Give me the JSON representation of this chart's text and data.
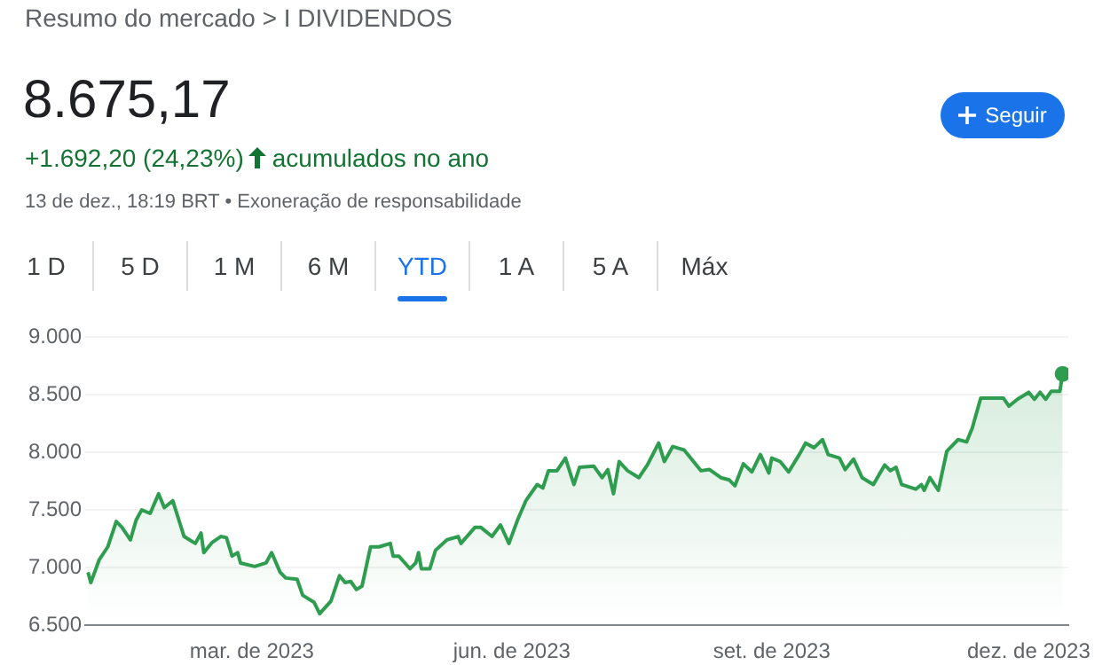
{
  "chart_data": {
    "type": "area",
    "title": "Resumo do mercado > I DIVIDENDOS",
    "subtitle": "8.675,17",
    "annotations": [
      "+1.692,20 (24,23%)",
      "acumulados no ano",
      "13 de dez., 18:19 BRT • Exoneração de responsabilidade",
      "Seguir",
      "1 D",
      "5 D",
      "1 M",
      "6 M",
      "YTD",
      "1 A",
      "5 A",
      "Máx"
    ],
    "xlim": [
      "2023-01-01",
      "2023-12-15"
    ],
    "xticks": [
      {
        "value": "2023-03-01",
        "label": "mar. de 2023"
      },
      {
        "value": "2023-06-01",
        "label": "jun. de 2023"
      },
      {
        "value": "2023-09-01",
        "label": "set. de 2023"
      },
      {
        "value": "2023-12-01",
        "label": "dez. de 2023"
      }
    ],
    "ylim": [
      6500,
      9000
    ],
    "yticks": [
      {
        "value": 6500,
        "label": "6.500"
      },
      {
        "value": 7000,
        "label": "7.000"
      },
      {
        "value": 7500,
        "label": "7.500"
      },
      {
        "value": 8000,
        "label": "8.000"
      },
      {
        "value": 8500,
        "label": "8.500"
      },
      {
        "value": 9000,
        "label": "9.000"
      }
    ],
    "grid": "y",
    "legend": false,
    "marker": "none",
    "line_style": "solid",
    "series": [
      {
        "type": "area",
        "color": "#2e9d4f",
        "x": [
          "2023-01-02",
          "2023-01-03",
          "2023-01-06",
          "2023-01-09",
          "2023-01-12",
          "2023-01-14",
          "2023-01-17",
          "2023-01-19",
          "2023-01-21",
          "2023-01-24",
          "2023-01-27",
          "2023-01-29",
          "2023-02-01",
          "2023-02-05",
          "2023-02-07",
          "2023-02-09",
          "2023-02-11",
          "2023-02-12",
          "2023-02-15",
          "2023-02-18",
          "2023-02-20",
          "2023-02-22",
          "2023-02-24",
          "2023-02-25",
          "2023-03-02",
          "2023-03-06",
          "2023-03-08",
          "2023-03-11",
          "2023-03-13",
          "2023-03-17",
          "2023-03-19",
          "2023-03-23",
          "2023-03-25",
          "2023-03-29",
          "2023-04-01",
          "2023-04-03",
          "2023-04-05",
          "2023-04-07",
          "2023-04-09",
          "2023-04-12",
          "2023-04-15",
          "2023-04-19",
          "2023-04-20",
          "2023-04-22",
          "2023-04-26",
          "2023-04-28",
          "2023-04-29",
          "2023-04-30",
          "2023-05-03",
          "2023-05-05",
          "2023-05-09",
          "2023-05-13",
          "2023-05-14",
          "2023-05-19",
          "2023-05-21",
          "2023-05-25",
          "2023-05-28",
          "2023-05-31",
          "2023-06-03",
          "2023-06-06",
          "2023-06-10",
          "2023-06-12",
          "2023-06-14",
          "2023-06-17",
          "2023-06-20",
          "2023-06-23",
          "2023-06-25",
          "2023-06-30",
          "2023-07-03",
          "2023-07-05",
          "2023-07-07",
          "2023-07-09",
          "2023-07-12",
          "2023-07-16",
          "2023-07-19",
          "2023-07-23",
          "2023-07-25",
          "2023-07-28",
          "2023-08-01",
          "2023-08-07",
          "2023-08-10",
          "2023-08-14",
          "2023-08-17",
          "2023-08-19",
          "2023-08-22",
          "2023-08-25",
          "2023-08-28",
          "2023-08-31",
          "2023-09-01",
          "2023-09-04",
          "2023-09-07",
          "2023-09-11",
          "2023-09-13",
          "2023-09-16",
          "2023-09-19",
          "2023-09-21",
          "2023-09-25",
          "2023-09-27",
          "2023-09-30",
          "2023-10-03",
          "2023-10-07",
          "2023-10-11",
          "2023-10-13",
          "2023-10-15",
          "2023-10-17",
          "2023-10-22",
          "2023-10-24",
          "2023-10-25",
          "2023-10-27",
          "2023-10-30",
          "2023-11-02",
          "2023-11-06",
          "2023-11-09",
          "2023-11-11",
          "2023-11-14",
          "2023-11-19",
          "2023-11-22",
          "2023-11-24",
          "2023-11-27",
          "2023-12-01",
          "2023-12-03",
          "2023-12-05",
          "2023-12-07",
          "2023-12-09",
          "2023-12-12",
          "2023-12-13"
        ],
        "values": [
          6960,
          6870,
          7070,
          7180,
          7400,
          7350,
          7240,
          7410,
          7500,
          7470,
          7640,
          7520,
          7580,
          7270,
          7240,
          7210,
          7300,
          7130,
          7220,
          7270,
          7260,
          7100,
          7130,
          7040,
          7010,
          7040,
          7130,
          6960,
          6910,
          6900,
          6760,
          6700,
          6600,
          6710,
          6930,
          6870,
          6880,
          6810,
          6840,
          7180,
          7180,
          7210,
          7100,
          7100,
          6990,
          7040,
          7130,
          6990,
          6990,
          7150,
          7240,
          7270,
          7210,
          7350,
          7350,
          7270,
          7370,
          7210,
          7410,
          7580,
          7720,
          7690,
          7840,
          7840,
          7950,
          7720,
          7870,
          7880,
          7780,
          7850,
          7640,
          7920,
          7840,
          7780,
          7890,
          8080,
          7920,
          8050,
          8020,
          7840,
          7850,
          7780,
          7760,
          7710,
          7900,
          7830,
          7980,
          7820,
          7950,
          7920,
          7830,
          7990,
          8080,
          8040,
          8110,
          7980,
          7950,
          7850,
          7940,
          7780,
          7720,
          7890,
          7840,
          7870,
          7720,
          7680,
          7720,
          7670,
          7780,
          7670,
          8010,
          8110,
          8090,
          8210,
          8470,
          8470,
          8470,
          8400,
          8460,
          8520,
          8460,
          8520,
          8460,
          8530,
          8530,
          8680
        ]
      },
      {
        "type": "scatter",
        "color": "#2e9d4f",
        "marker": "circle",
        "x": [
          "2023-12-13"
        ],
        "values": [
          8680
        ]
      }
    ]
  }
}
